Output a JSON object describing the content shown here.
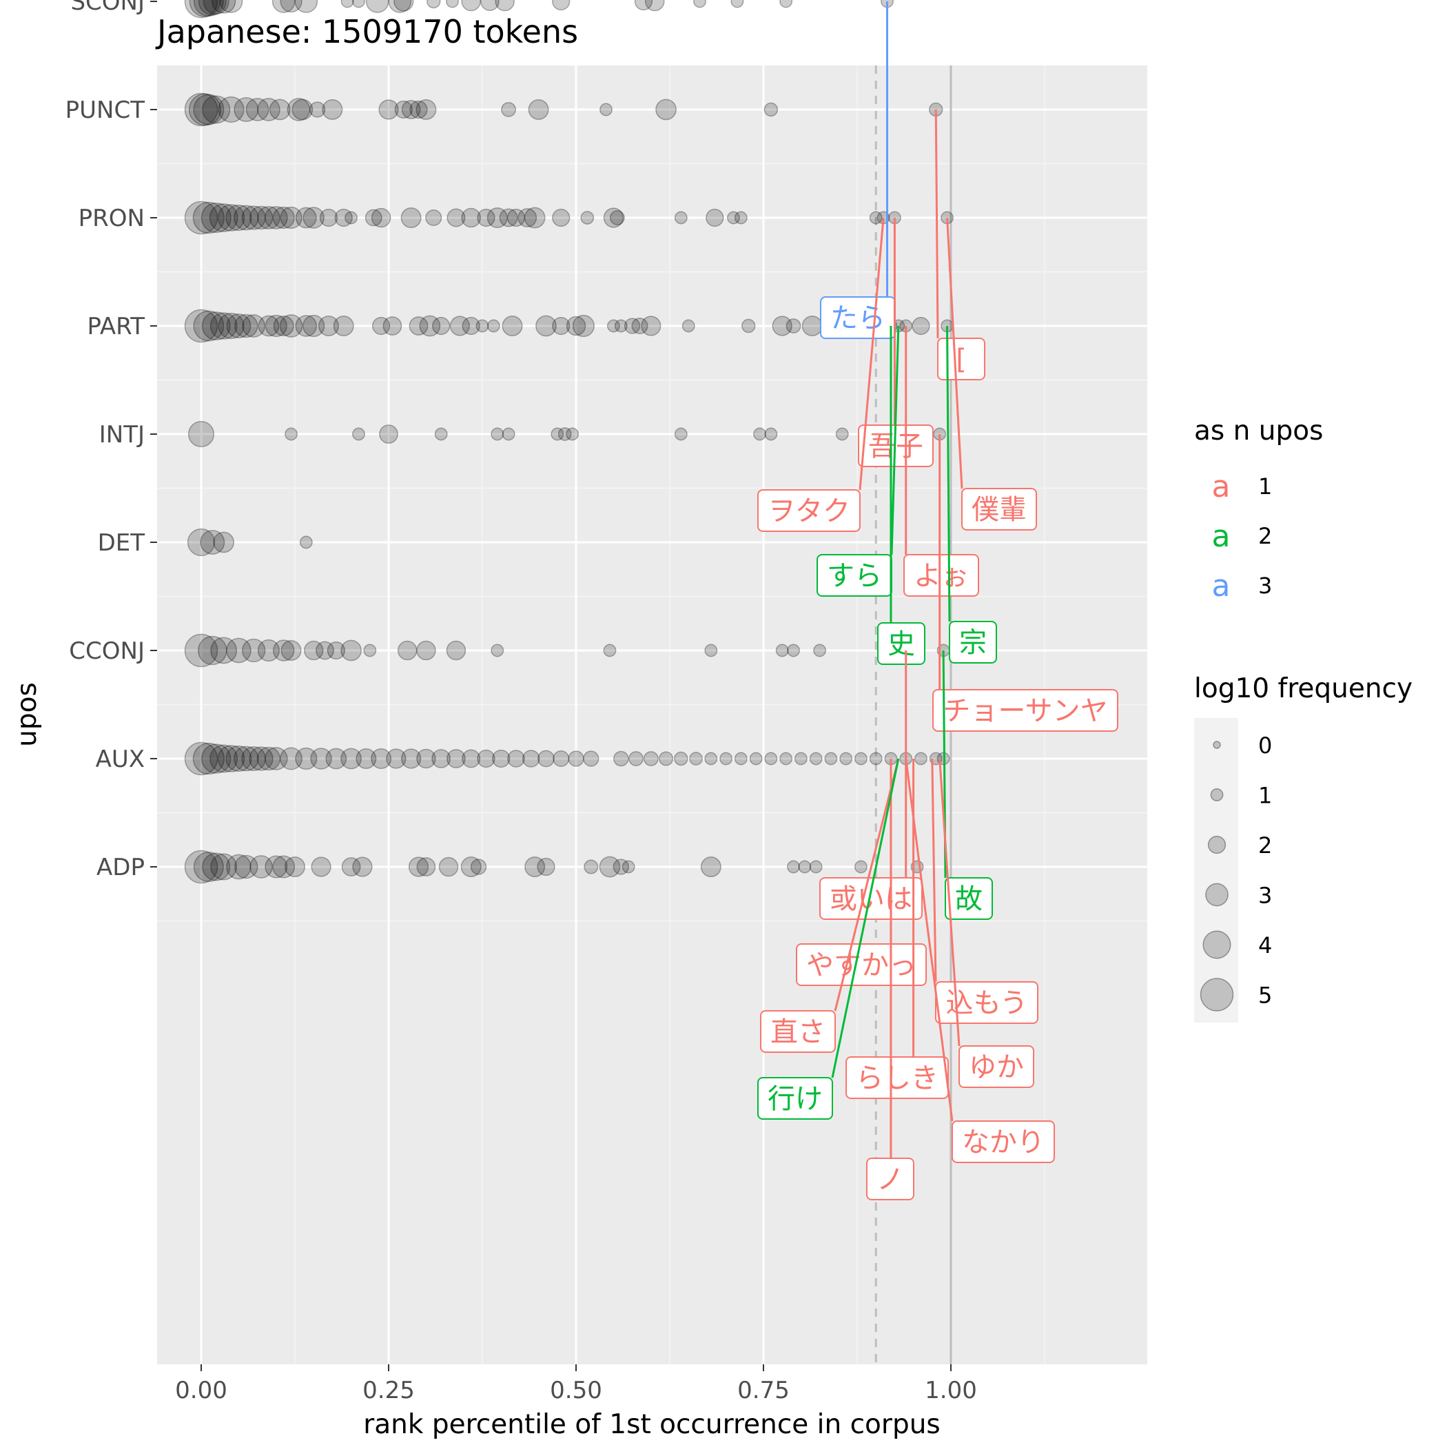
{
  "chart_data": {
    "type": "scatter",
    "title": "Japanese: 1509170 tokens",
    "xlabel": "rank percentile of 1st occurrence in corpus",
    "ylabel": "upos",
    "xlim": [
      -0.12,
      1.27
    ],
    "x_ticks": [
      "0.00",
      "0.25",
      "0.50",
      "0.75",
      "1.00"
    ],
    "x_tick_values": [
      0,
      0.25,
      0.5,
      0.75,
      1.0
    ],
    "categories": [
      "ADP",
      "AUX",
      "CCONJ",
      "DET",
      "INTJ",
      "PART",
      "PRON",
      "PUNCT",
      "SCONJ"
    ],
    "reference_lines": [
      {
        "x": 0.9,
        "style": "dashed",
        "color": "#bdbdbd"
      },
      {
        "x": 1.0,
        "style": "solid",
        "color": "#bdbdbd"
      }
    ],
    "point_color": "#000000",
    "point_alpha": 0.2,
    "points": {
      "SCONJ": [
        [
          0,
          5
        ],
        [
          0.005,
          4.6
        ],
        [
          0.01,
          4.4
        ],
        [
          0.015,
          4
        ],
        [
          0.02,
          3.6
        ],
        [
          0.03,
          3.2
        ],
        [
          0.04,
          3
        ],
        [
          0.11,
          3
        ],
        [
          0.12,
          2.8
        ],
        [
          0.14,
          3
        ],
        [
          0.195,
          1
        ],
        [
          0.21,
          1
        ],
        [
          0.235,
          3
        ],
        [
          0.265,
          3
        ],
        [
          0.27,
          2.4
        ],
        [
          0.31,
          1.2
        ],
        [
          0.335,
          1
        ],
        [
          0.36,
          2.3
        ],
        [
          0.385,
          2.2
        ],
        [
          0.405,
          2.3
        ],
        [
          0.48,
          2
        ],
        [
          0.59,
          2
        ],
        [
          0.605,
          2.3
        ],
        [
          0.665,
          1
        ],
        [
          0.715,
          1
        ],
        [
          0.78,
          1
        ],
        [
          0.915,
          1
        ]
      ],
      "PUNCT": [
        [
          0,
          5
        ],
        [
          0.005,
          4.8
        ],
        [
          0.01,
          4.5
        ],
        [
          0.02,
          4
        ],
        [
          0.04,
          3.6
        ],
        [
          0.06,
          3.3
        ],
        [
          0.075,
          3
        ],
        [
          0.09,
          3
        ],
        [
          0.105,
          2.6
        ],
        [
          0.13,
          3
        ],
        [
          0.135,
          2.6
        ],
        [
          0.155,
          1.6
        ],
        [
          0.175,
          2.5
        ],
        [
          0.25,
          2.4
        ],
        [
          0.27,
          2
        ],
        [
          0.28,
          2.2
        ],
        [
          0.29,
          2
        ],
        [
          0.3,
          2.5
        ],
        [
          0.41,
          1.4
        ],
        [
          0.45,
          2.5
        ],
        [
          0.54,
          1
        ],
        [
          0.62,
          2.6
        ],
        [
          0.76,
          1.2
        ],
        [
          0.98,
          1.2
        ]
      ],
      "PRON": [
        [
          0,
          5
        ],
        [
          0.01,
          4.7
        ],
        [
          0.02,
          4.4
        ],
        [
          0.03,
          4.1
        ],
        [
          0.04,
          3.8
        ],
        [
          0.05,
          3.6
        ],
        [
          0.06,
          3.4
        ],
        [
          0.07,
          3.2
        ],
        [
          0.08,
          3.1
        ],
        [
          0.09,
          3
        ],
        [
          0.1,
          3
        ],
        [
          0.11,
          2.8
        ],
        [
          0.12,
          2.8
        ],
        [
          0.14,
          2.6
        ],
        [
          0.15,
          2.7
        ],
        [
          0.17,
          2
        ],
        [
          0.19,
          2
        ],
        [
          0.2,
          1
        ],
        [
          0.23,
          1.8
        ],
        [
          0.24,
          2.3
        ],
        [
          0.28,
          2.5
        ],
        [
          0.31,
          1.7
        ],
        [
          0.34,
          2.1
        ],
        [
          0.36,
          2.3
        ],
        [
          0.38,
          2
        ],
        [
          0.395,
          2.5
        ],
        [
          0.41,
          2.1
        ],
        [
          0.42,
          2
        ],
        [
          0.435,
          2.2
        ],
        [
          0.445,
          2.6
        ],
        [
          0.48,
          2
        ],
        [
          0.515,
          1.1
        ],
        [
          0.55,
          2.4
        ],
        [
          0.555,
          1.4
        ],
        [
          0.64,
          1
        ],
        [
          0.685,
          2
        ],
        [
          0.71,
          1
        ],
        [
          0.72,
          1
        ],
        [
          0.9,
          1
        ],
        [
          0.91,
          1
        ],
        [
          0.925,
          1
        ],
        [
          0.995,
          1
        ]
      ],
      "PART": [
        [
          0,
          5
        ],
        [
          0.01,
          4.5
        ],
        [
          0.02,
          4.1
        ],
        [
          0.03,
          3.8
        ],
        [
          0.04,
          3.6
        ],
        [
          0.05,
          3.3
        ],
        [
          0.06,
          3.1
        ],
        [
          0.07,
          3
        ],
        [
          0.09,
          2.6
        ],
        [
          0.1,
          2.8
        ],
        [
          0.11,
          2.5
        ],
        [
          0.12,
          3
        ],
        [
          0.14,
          2.7
        ],
        [
          0.15,
          2.8
        ],
        [
          0.17,
          2.5
        ],
        [
          0.19,
          2.5
        ],
        [
          0.24,
          2
        ],
        [
          0.255,
          2.2
        ],
        [
          0.29,
          2.2
        ],
        [
          0.305,
          2.6
        ],
        [
          0.32,
          2
        ],
        [
          0.345,
          2.4
        ],
        [
          0.36,
          2
        ],
        [
          0.375,
          1
        ],
        [
          0.39,
          1
        ],
        [
          0.415,
          2.5
        ],
        [
          0.46,
          2.6
        ],
        [
          0.48,
          2
        ],
        [
          0.5,
          2.3
        ],
        [
          0.51,
          2.8
        ],
        [
          0.55,
          1
        ],
        [
          0.56,
          1
        ],
        [
          0.575,
          1.6
        ],
        [
          0.585,
          1.7
        ],
        [
          0.6,
          2.4
        ],
        [
          0.65,
          1
        ],
        [
          0.73,
          1.2
        ],
        [
          0.775,
          2.4
        ],
        [
          0.79,
          1.4
        ],
        [
          0.815,
          2.5
        ],
        [
          0.85,
          1
        ],
        [
          0.895,
          1
        ],
        [
          0.905,
          1
        ],
        [
          0.92,
          1
        ],
        [
          0.93,
          1
        ],
        [
          0.94,
          1
        ],
        [
          0.96,
          2
        ],
        [
          0.995,
          1
        ]
      ],
      "INTJ": [
        [
          0,
          3.6
        ],
        [
          0.12,
          1
        ],
        [
          0.21,
          1
        ],
        [
          0.25,
          2.2
        ],
        [
          0.32,
          1
        ],
        [
          0.395,
          1
        ],
        [
          0.41,
          1
        ],
        [
          0.475,
          1
        ],
        [
          0.485,
          1.1
        ],
        [
          0.495,
          1
        ],
        [
          0.64,
          1
        ],
        [
          0.745,
          1
        ],
        [
          0.76,
          1
        ],
        [
          0.855,
          1
        ],
        [
          0.985,
          1
        ]
      ],
      "DET": [
        [
          0,
          3.9
        ],
        [
          0.015,
          3.3
        ],
        [
          0.03,
          2.6
        ],
        [
          0.14,
          1
        ]
      ],
      "CCONJ": [
        [
          0,
          5
        ],
        [
          0.015,
          4.2
        ],
        [
          0.03,
          3.7
        ],
        [
          0.05,
          3.4
        ],
        [
          0.07,
          3.1
        ],
        [
          0.09,
          2.8
        ],
        [
          0.11,
          2.7
        ],
        [
          0.12,
          2.5
        ],
        [
          0.15,
          2.3
        ],
        [
          0.165,
          2.1
        ],
        [
          0.18,
          2
        ],
        [
          0.2,
          2.6
        ],
        [
          0.225,
          1
        ],
        [
          0.275,
          2.3
        ],
        [
          0.3,
          2.3
        ],
        [
          0.34,
          2.3
        ],
        [
          0.395,
          1
        ],
        [
          0.545,
          1
        ],
        [
          0.68,
          1
        ],
        [
          0.775,
          1
        ],
        [
          0.79,
          1
        ],
        [
          0.825,
          1
        ],
        [
          0.94,
          1
        ],
        [
          0.99,
          1
        ]
      ],
      "AUX": [
        [
          0,
          5
        ],
        [
          0.01,
          4.7
        ],
        [
          0.02,
          4.3
        ],
        [
          0.03,
          4
        ],
        [
          0.04,
          3.8
        ],
        [
          0.05,
          3.6
        ],
        [
          0.06,
          3.4
        ],
        [
          0.07,
          3.3
        ],
        [
          0.08,
          3.2
        ],
        [
          0.09,
          3.1
        ],
        [
          0.1,
          3
        ],
        [
          0.12,
          2.9
        ],
        [
          0.14,
          2.8
        ],
        [
          0.16,
          2.7
        ],
        [
          0.18,
          2.6
        ],
        [
          0.2,
          2.6
        ],
        [
          0.22,
          2.5
        ],
        [
          0.24,
          2.5
        ],
        [
          0.26,
          2.4
        ],
        [
          0.28,
          2.4
        ],
        [
          0.3,
          2.3
        ],
        [
          0.32,
          2.2
        ],
        [
          0.34,
          2.2
        ],
        [
          0.36,
          2.1
        ],
        [
          0.38,
          2
        ],
        [
          0.4,
          2
        ],
        [
          0.42,
          1.9
        ],
        [
          0.44,
          1.9
        ],
        [
          0.46,
          1.8
        ],
        [
          0.48,
          1.7
        ],
        [
          0.5,
          1.6
        ],
        [
          0.52,
          1.6
        ],
        [
          0.56,
          1.5
        ],
        [
          0.58,
          1.4
        ],
        [
          0.6,
          1.4
        ],
        [
          0.62,
          1.3
        ],
        [
          0.64,
          1.2
        ],
        [
          0.66,
          1.1
        ],
        [
          0.68,
          1
        ],
        [
          0.7,
          1
        ],
        [
          0.72,
          1
        ],
        [
          0.74,
          1
        ],
        [
          0.76,
          1
        ],
        [
          0.78,
          1
        ],
        [
          0.8,
          1
        ],
        [
          0.82,
          1
        ],
        [
          0.84,
          1
        ],
        [
          0.86,
          1
        ],
        [
          0.88,
          1
        ],
        [
          0.9,
          1
        ],
        [
          0.92,
          1
        ],
        [
          0.94,
          1
        ],
        [
          0.96,
          1
        ],
        [
          0.98,
          1
        ],
        [
          0.99,
          1
        ]
      ],
      "ADP": [
        [
          0,
          5
        ],
        [
          0.01,
          4.4
        ],
        [
          0.02,
          4
        ],
        [
          0.03,
          3.7
        ],
        [
          0.05,
          3.4
        ],
        [
          0.06,
          3.1
        ],
        [
          0.08,
          3
        ],
        [
          0.1,
          2.9
        ],
        [
          0.11,
          2.9
        ],
        [
          0.125,
          2.5
        ],
        [
          0.16,
          2.4
        ],
        [
          0.2,
          2.2
        ],
        [
          0.215,
          2.4
        ],
        [
          0.29,
          2.4
        ],
        [
          0.3,
          2.2
        ],
        [
          0.33,
          2.3
        ],
        [
          0.36,
          2.5
        ],
        [
          0.37,
          1.6
        ],
        [
          0.445,
          2.5
        ],
        [
          0.46,
          2
        ],
        [
          0.52,
          1.3
        ],
        [
          0.545,
          2.6
        ],
        [
          0.56,
          1.6
        ],
        [
          0.57,
          1
        ],
        [
          0.68,
          2.5
        ],
        [
          0.79,
          1
        ],
        [
          0.805,
          1
        ],
        [
          0.82,
          1
        ],
        [
          0.88,
          1
        ],
        [
          0.955,
          1
        ]
      ]
    },
    "labels": [
      {
        "text": "たら",
        "upos": "SCONJ",
        "x": 0.915,
        "n": 3
      },
      {
        "text": "[",
        "upos": "PUNCT",
        "x": 0.98,
        "n": 1
      },
      {
        "text": "吾子",
        "upos": "PRON",
        "x": 0.925,
        "n": 1
      },
      {
        "text": "ヲタク",
        "upos": "PRON",
        "x": 0.91,
        "n": 1
      },
      {
        "text": "僕輩",
        "upos": "PRON",
        "x": 0.995,
        "n": 1
      },
      {
        "text": "すら",
        "upos": "PART",
        "x": 0.93,
        "n": 2
      },
      {
        "text": "よぉ",
        "upos": "PART",
        "x": 0.94,
        "n": 1
      },
      {
        "text": "史",
        "upos": "PART",
        "x": 0.92,
        "n": 2
      },
      {
        "text": "宗",
        "upos": "PART",
        "x": 0.995,
        "n": 2
      },
      {
        "text": "チョーサンヤ",
        "upos": "INTJ",
        "x": 0.985,
        "n": 1
      },
      {
        "text": "或いは",
        "upos": "CCONJ",
        "x": 0.94,
        "n": 1
      },
      {
        "text": "故",
        "upos": "CCONJ",
        "x": 0.99,
        "n": 2
      },
      {
        "text": "やすかっ",
        "upos": "AUX",
        "x": 0.92,
        "n": 1
      },
      {
        "text": "込もう",
        "upos": "AUX",
        "x": 0.975,
        "n": 1
      },
      {
        "text": "直さ",
        "upos": "AUX",
        "x": 0.93,
        "n": 1
      },
      {
        "text": "ゆか",
        "upos": "AUX",
        "x": 0.985,
        "n": 1
      },
      {
        "text": "らしき",
        "upos": "AUX",
        "x": 0.95,
        "n": 1
      },
      {
        "text": "行け",
        "upos": "AUX",
        "x": 0.93,
        "n": 2
      },
      {
        "text": "なかり",
        "upos": "AUX",
        "x": 0.94,
        "n": 1
      },
      {
        "text": "ノ",
        "upos": "ADP",
        "x": 0.92,
        "n": 1
      }
    ],
    "legend_color": {
      "title": "as n upos",
      "glyph": "a",
      "entries": [
        {
          "label": "1",
          "color": "#F8766D"
        },
        {
          "label": "2",
          "color": "#00BA38"
        },
        {
          "label": "3",
          "color": "#619CFF"
        }
      ]
    },
    "legend_size": {
      "title": "log10 frequency",
      "entries": [
        {
          "label": "0",
          "value": 0
        },
        {
          "label": "1",
          "value": 1
        },
        {
          "label": "2",
          "value": 2
        },
        {
          "label": "3",
          "value": 3
        },
        {
          "label": "4",
          "value": 4
        },
        {
          "label": "5",
          "value": 5
        }
      ]
    }
  }
}
